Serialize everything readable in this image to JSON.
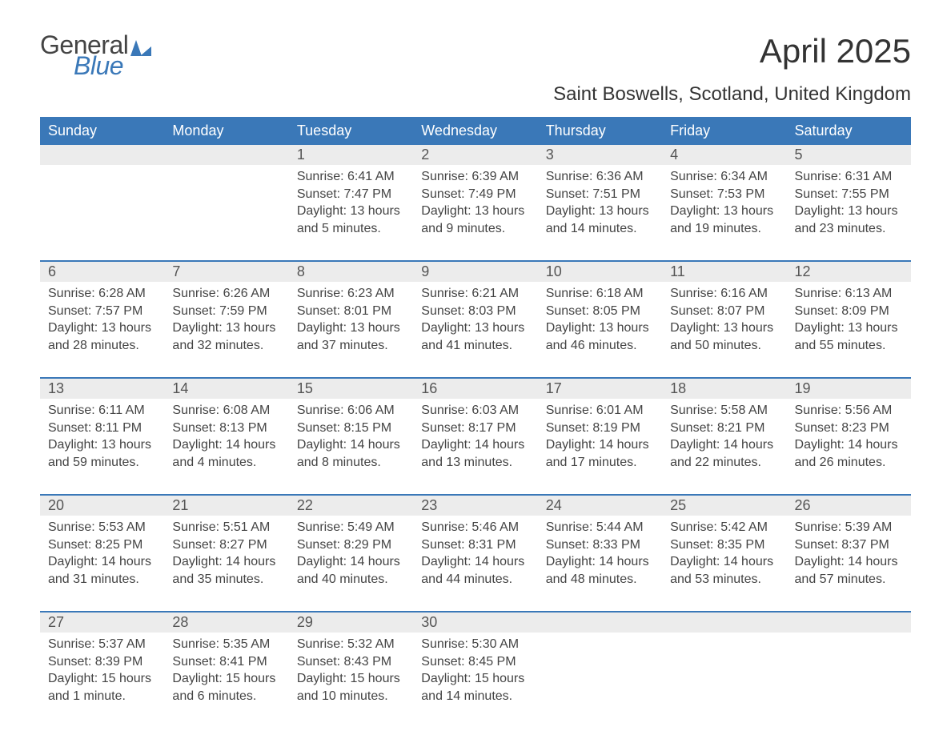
{
  "brand": {
    "word1": "General",
    "word2": "Blue",
    "accent_color": "#3a78b8",
    "text_color": "#444444"
  },
  "title": "April 2025",
  "subtitle": "Saint Boswells, Scotland, United Kingdom",
  "colors": {
    "header_bg": "#3a78b8",
    "header_text": "#ffffff",
    "week_rule": "#3a78b8",
    "daynum_bg": "#ececec",
    "body_text": "#444444",
    "page_bg": "#ffffff"
  },
  "day_headers": [
    "Sunday",
    "Monday",
    "Tuesday",
    "Wednesday",
    "Thursday",
    "Friday",
    "Saturday"
  ],
  "weeks": [
    [
      {
        "n": "",
        "sunrise": "",
        "sunset": "",
        "daylight": ""
      },
      {
        "n": "",
        "sunrise": "",
        "sunset": "",
        "daylight": ""
      },
      {
        "n": "1",
        "sunrise": "Sunrise: 6:41 AM",
        "sunset": "Sunset: 7:47 PM",
        "daylight": "Daylight: 13 hours and 5 minutes."
      },
      {
        "n": "2",
        "sunrise": "Sunrise: 6:39 AM",
        "sunset": "Sunset: 7:49 PM",
        "daylight": "Daylight: 13 hours and 9 minutes."
      },
      {
        "n": "3",
        "sunrise": "Sunrise: 6:36 AM",
        "sunset": "Sunset: 7:51 PM",
        "daylight": "Daylight: 13 hours and 14 minutes."
      },
      {
        "n": "4",
        "sunrise": "Sunrise: 6:34 AM",
        "sunset": "Sunset: 7:53 PM",
        "daylight": "Daylight: 13 hours and 19 minutes."
      },
      {
        "n": "5",
        "sunrise": "Sunrise: 6:31 AM",
        "sunset": "Sunset: 7:55 PM",
        "daylight": "Daylight: 13 hours and 23 minutes."
      }
    ],
    [
      {
        "n": "6",
        "sunrise": "Sunrise: 6:28 AM",
        "sunset": "Sunset: 7:57 PM",
        "daylight": "Daylight: 13 hours and 28 minutes."
      },
      {
        "n": "7",
        "sunrise": "Sunrise: 6:26 AM",
        "sunset": "Sunset: 7:59 PM",
        "daylight": "Daylight: 13 hours and 32 minutes."
      },
      {
        "n": "8",
        "sunrise": "Sunrise: 6:23 AM",
        "sunset": "Sunset: 8:01 PM",
        "daylight": "Daylight: 13 hours and 37 minutes."
      },
      {
        "n": "9",
        "sunrise": "Sunrise: 6:21 AM",
        "sunset": "Sunset: 8:03 PM",
        "daylight": "Daylight: 13 hours and 41 minutes."
      },
      {
        "n": "10",
        "sunrise": "Sunrise: 6:18 AM",
        "sunset": "Sunset: 8:05 PM",
        "daylight": "Daylight: 13 hours and 46 minutes."
      },
      {
        "n": "11",
        "sunrise": "Sunrise: 6:16 AM",
        "sunset": "Sunset: 8:07 PM",
        "daylight": "Daylight: 13 hours and 50 minutes."
      },
      {
        "n": "12",
        "sunrise": "Sunrise: 6:13 AM",
        "sunset": "Sunset: 8:09 PM",
        "daylight": "Daylight: 13 hours and 55 minutes."
      }
    ],
    [
      {
        "n": "13",
        "sunrise": "Sunrise: 6:11 AM",
        "sunset": "Sunset: 8:11 PM",
        "daylight": "Daylight: 13 hours and 59 minutes."
      },
      {
        "n": "14",
        "sunrise": "Sunrise: 6:08 AM",
        "sunset": "Sunset: 8:13 PM",
        "daylight": "Daylight: 14 hours and 4 minutes."
      },
      {
        "n": "15",
        "sunrise": "Sunrise: 6:06 AM",
        "sunset": "Sunset: 8:15 PM",
        "daylight": "Daylight: 14 hours and 8 minutes."
      },
      {
        "n": "16",
        "sunrise": "Sunrise: 6:03 AM",
        "sunset": "Sunset: 8:17 PM",
        "daylight": "Daylight: 14 hours and 13 minutes."
      },
      {
        "n": "17",
        "sunrise": "Sunrise: 6:01 AM",
        "sunset": "Sunset: 8:19 PM",
        "daylight": "Daylight: 14 hours and 17 minutes."
      },
      {
        "n": "18",
        "sunrise": "Sunrise: 5:58 AM",
        "sunset": "Sunset: 8:21 PM",
        "daylight": "Daylight: 14 hours and 22 minutes."
      },
      {
        "n": "19",
        "sunrise": "Sunrise: 5:56 AM",
        "sunset": "Sunset: 8:23 PM",
        "daylight": "Daylight: 14 hours and 26 minutes."
      }
    ],
    [
      {
        "n": "20",
        "sunrise": "Sunrise: 5:53 AM",
        "sunset": "Sunset: 8:25 PM",
        "daylight": "Daylight: 14 hours and 31 minutes."
      },
      {
        "n": "21",
        "sunrise": "Sunrise: 5:51 AM",
        "sunset": "Sunset: 8:27 PM",
        "daylight": "Daylight: 14 hours and 35 minutes."
      },
      {
        "n": "22",
        "sunrise": "Sunrise: 5:49 AM",
        "sunset": "Sunset: 8:29 PM",
        "daylight": "Daylight: 14 hours and 40 minutes."
      },
      {
        "n": "23",
        "sunrise": "Sunrise: 5:46 AM",
        "sunset": "Sunset: 8:31 PM",
        "daylight": "Daylight: 14 hours and 44 minutes."
      },
      {
        "n": "24",
        "sunrise": "Sunrise: 5:44 AM",
        "sunset": "Sunset: 8:33 PM",
        "daylight": "Daylight: 14 hours and 48 minutes."
      },
      {
        "n": "25",
        "sunrise": "Sunrise: 5:42 AM",
        "sunset": "Sunset: 8:35 PM",
        "daylight": "Daylight: 14 hours and 53 minutes."
      },
      {
        "n": "26",
        "sunrise": "Sunrise: 5:39 AM",
        "sunset": "Sunset: 8:37 PM",
        "daylight": "Daylight: 14 hours and 57 minutes."
      }
    ],
    [
      {
        "n": "27",
        "sunrise": "Sunrise: 5:37 AM",
        "sunset": "Sunset: 8:39 PM",
        "daylight": "Daylight: 15 hours and 1 minute."
      },
      {
        "n": "28",
        "sunrise": "Sunrise: 5:35 AM",
        "sunset": "Sunset: 8:41 PM",
        "daylight": "Daylight: 15 hours and 6 minutes."
      },
      {
        "n": "29",
        "sunrise": "Sunrise: 5:32 AM",
        "sunset": "Sunset: 8:43 PM",
        "daylight": "Daylight: 15 hours and 10 minutes."
      },
      {
        "n": "30",
        "sunrise": "Sunrise: 5:30 AM",
        "sunset": "Sunset: 8:45 PM",
        "daylight": "Daylight: 15 hours and 14 minutes."
      },
      {
        "n": "",
        "sunrise": "",
        "sunset": "",
        "daylight": ""
      },
      {
        "n": "",
        "sunrise": "",
        "sunset": "",
        "daylight": ""
      },
      {
        "n": "",
        "sunrise": "",
        "sunset": "",
        "daylight": ""
      }
    ]
  ]
}
